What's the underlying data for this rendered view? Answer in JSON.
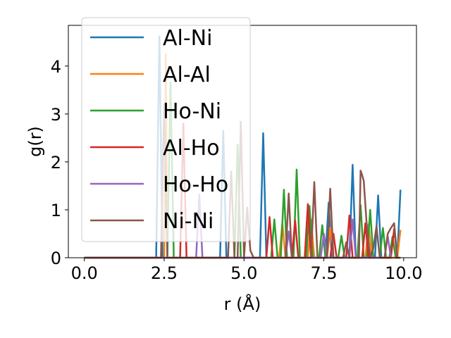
{
  "chart_data": {
    "type": "line",
    "title": "",
    "xlabel": "r (Å)",
    "ylabel": "g(r)",
    "xlim": [
      -0.5,
      10.4
    ],
    "ylim": [
      0,
      4.85
    ],
    "xticks": [
      0.0,
      2.5,
      5.0,
      7.5,
      10.0
    ],
    "xtick_labels": [
      "0.0",
      "2.5",
      "5.0",
      "7.5",
      "10.0"
    ],
    "yticks": [
      0,
      1,
      2,
      3,
      4
    ],
    "ytick_labels": [
      "0",
      "1",
      "2",
      "3",
      "4"
    ],
    "grid": false,
    "legend_position": "top-left",
    "series": [
      {
        "name": "Al-Ni",
        "color": "#1f77b4",
        "x": [
          0.0,
          2.25,
          2.35,
          2.45,
          2.55,
          4.25,
          4.35,
          4.45,
          5.5,
          5.6,
          5.7,
          7.55,
          7.65,
          7.75,
          8.3,
          8.4,
          8.5,
          9.1,
          9.2,
          9.3,
          9.8,
          9.9
        ],
        "y": [
          0.0,
          0.0,
          4.62,
          0.0,
          0.0,
          0.0,
          2.65,
          0.0,
          0.0,
          2.6,
          0.0,
          0.0,
          1.15,
          0.0,
          0.0,
          1.94,
          0.0,
          0.0,
          1.3,
          0.0,
          0.0,
          1.42
        ]
      },
      {
        "name": "Al-Al",
        "color": "#ff7f0e",
        "x": [
          0.0,
          2.5,
          2.55,
          2.6,
          6.1,
          6.2,
          6.3,
          7.0,
          7.1,
          7.2,
          7.6,
          7.7,
          7.8,
          8.8,
          8.9,
          9.0,
          9.8,
          9.9
        ],
        "y": [
          0.0,
          0.0,
          4.25,
          0.0,
          0.0,
          0.72,
          0.0,
          0.0,
          0.8,
          0.0,
          0.0,
          0.62,
          0.0,
          0.0,
          0.7,
          0.0,
          0.0,
          0.58
        ]
      },
      {
        "name": "Ho-Ni",
        "color": "#2ca02c",
        "x": [
          0.0,
          2.6,
          2.7,
          2.8,
          4.7,
          4.8,
          4.9,
          5.85,
          5.95,
          6.05,
          6.15,
          6.25,
          6.35,
          6.55,
          6.65,
          6.75,
          6.95,
          7.05,
          7.15,
          7.35,
          7.45,
          7.55,
          7.95,
          8.05,
          8.15,
          8.55,
          8.65,
          8.75,
          8.85,
          8.95,
          9.05,
          9.25,
          9.35,
          9.45,
          9.55,
          9.65,
          9.75,
          9.85
        ],
        "y": [
          0.0,
          0.0,
          3.66,
          0.0,
          0.0,
          2.36,
          0.0,
          0.0,
          0.8,
          0.0,
          0.0,
          1.42,
          0.0,
          0.0,
          1.84,
          0.0,
          0.0,
          1.08,
          0.0,
          0.0,
          0.68,
          0.0,
          0.0,
          0.46,
          0.0,
          0.0,
          1.1,
          0.0,
          0.0,
          1.0,
          0.0,
          0.0,
          0.62,
          0.0,
          0.0,
          0.44,
          0.0,
          0.0
        ]
      },
      {
        "name": "Al-Ho",
        "color": "#d62728",
        "x": [
          0.0,
          3.0,
          3.1,
          3.2,
          5.7,
          5.8,
          5.9,
          6.5,
          6.6,
          6.7,
          6.9,
          7.0,
          7.1,
          7.7,
          7.8,
          7.9,
          8.2,
          8.3,
          8.4,
          8.7,
          8.8,
          8.9,
          9.6,
          9.7,
          9.8,
          9.9
        ],
        "y": [
          0.0,
          0.0,
          2.8,
          0.0,
          0.0,
          0.85,
          0.0,
          0.0,
          0.78,
          0.0,
          0.0,
          1.12,
          0.0,
          0.0,
          0.5,
          0.0,
          0.0,
          0.88,
          0.0,
          0.0,
          0.72,
          0.0,
          0.0,
          0.6,
          0.0,
          0.0
        ]
      },
      {
        "name": "Ho-Ho",
        "color": "#9467bd",
        "x": [
          0.0,
          3.5,
          3.6,
          3.7,
          6.3,
          6.4,
          6.5,
          7.4,
          7.5,
          7.6,
          8.3,
          8.4,
          8.5,
          9.4,
          9.5,
          9.6
        ],
        "y": [
          0.0,
          0.0,
          1.32,
          0.0,
          0.0,
          0.55,
          0.0,
          0.0,
          0.5,
          0.0,
          0.0,
          0.8,
          0.0,
          0.0,
          0.45,
          0.0
        ]
      },
      {
        "name": "Ni-Ni",
        "color": "#8c564b",
        "x": [
          0.0,
          2.4,
          2.5,
          2.6,
          4.5,
          4.6,
          4.7,
          4.8,
          4.9,
          5.0,
          5.1,
          5.2,
          5.3,
          6.3,
          6.4,
          6.5,
          7.1,
          7.2,
          7.3,
          7.6,
          7.7,
          7.8,
          8.1,
          8.2,
          8.3,
          8.6,
          8.65,
          8.7,
          8.75,
          8.85,
          8.95,
          9.05,
          9.15,
          9.25,
          9.4,
          9.5,
          9.6,
          9.7,
          9.8
        ],
        "y": [
          0.0,
          0.0,
          3.2,
          0.0,
          0.0,
          1.8,
          0.0,
          0.0,
          2.84,
          0.0,
          1.05,
          0.15,
          0.0,
          0.0,
          1.34,
          0.0,
          0.0,
          1.58,
          0.0,
          0.0,
          1.44,
          0.0,
          0.0,
          0.32,
          0.0,
          0.0,
          1.82,
          1.72,
          1.6,
          0.6,
          0.0,
          0.2,
          0.66,
          0.0,
          0.0,
          0.5,
          0.62,
          0.72,
          0.0
        ]
      }
    ]
  }
}
